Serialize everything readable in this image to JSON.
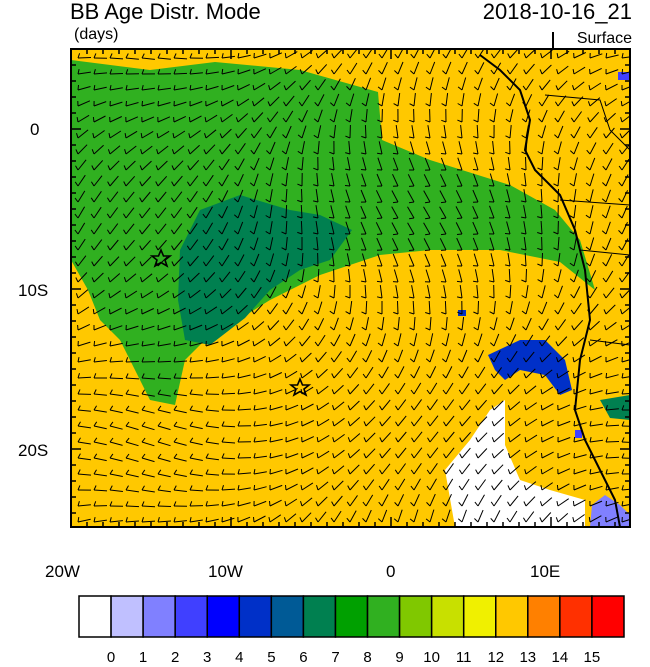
{
  "header": {
    "title": "BB Age Distr. Mode",
    "units": "(days)",
    "datetime": "2018-10-16_21",
    "level": "Surface"
  },
  "axes": {
    "x_labels": [
      "20W",
      "10W",
      "0",
      "10E"
    ],
    "y_labels": [
      "0",
      "10S",
      "20S"
    ]
  },
  "markers": [
    "star-marker",
    "star-marker"
  ],
  "colorbar": {
    "labels": [
      "0",
      "1",
      "2",
      "3",
      "4",
      "5",
      "6",
      "7",
      "8",
      "9",
      "10",
      "11",
      "12",
      "13",
      "14",
      "15"
    ],
    "colors": [
      "#ffffff",
      "#c0c0ff",
      "#8080ff",
      "#4040ff",
      "#0000ff",
      "#0030c8",
      "#005a96",
      "#008050",
      "#00a000",
      "#30b020",
      "#80c800",
      "#c8e000",
      "#f0f000",
      "#ffc800",
      "#ff8000",
      "#ff3000",
      "#ff0000"
    ]
  },
  "palette": {
    "background_age": "#ffc800",
    "plume_outer": "#30b020",
    "plume_inner": "#008050",
    "fresh_patch": "#0030c8",
    "young_patch": "#ffffff"
  }
}
